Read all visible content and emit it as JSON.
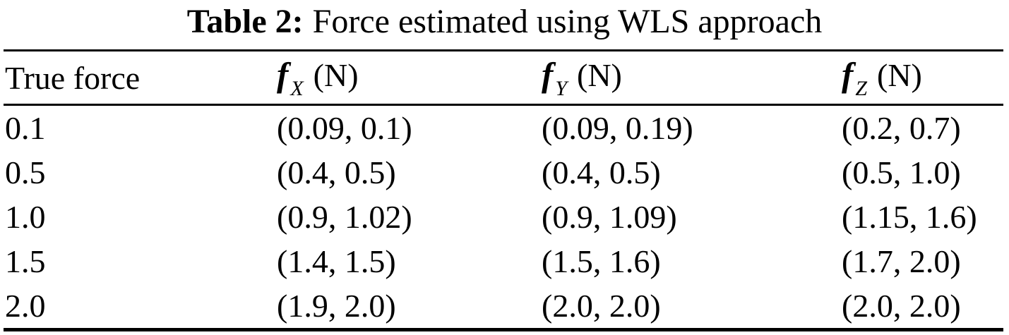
{
  "caption": {
    "label": "Table 2:",
    "text": "Force estimated using WLS approach"
  },
  "table": {
    "headers": [
      {
        "label": "True force"
      },
      {
        "symbol": "f",
        "subscript": "X",
        "unit": "(N)"
      },
      {
        "symbol": "f",
        "subscript": "Y",
        "unit": "(N)"
      },
      {
        "symbol": "f",
        "subscript": "Z",
        "unit": "(N)"
      }
    ],
    "rows": [
      [
        "0.1",
        "(0.09, 0.1)",
        "(0.09, 0.19)",
        "(0.2, 0.7)"
      ],
      [
        "0.5",
        "(0.4, 0.5)",
        "(0.4, 0.5)",
        "(0.5, 1.0)"
      ],
      [
        "1.0",
        "(0.9, 1.02)",
        "(0.9, 1.09)",
        "(1.15, 1.6)"
      ],
      [
        "1.5",
        "(1.4, 1.5)",
        "(1.5, 1.6)",
        "(1.7, 2.0)"
      ],
      [
        "2.0",
        "(1.9, 2.0)",
        "(2.0, 2.0)",
        "(2.0, 2.0)"
      ]
    ]
  },
  "colors": {
    "text": "#000000",
    "background": "#ffffff",
    "rule": "#000000"
  }
}
